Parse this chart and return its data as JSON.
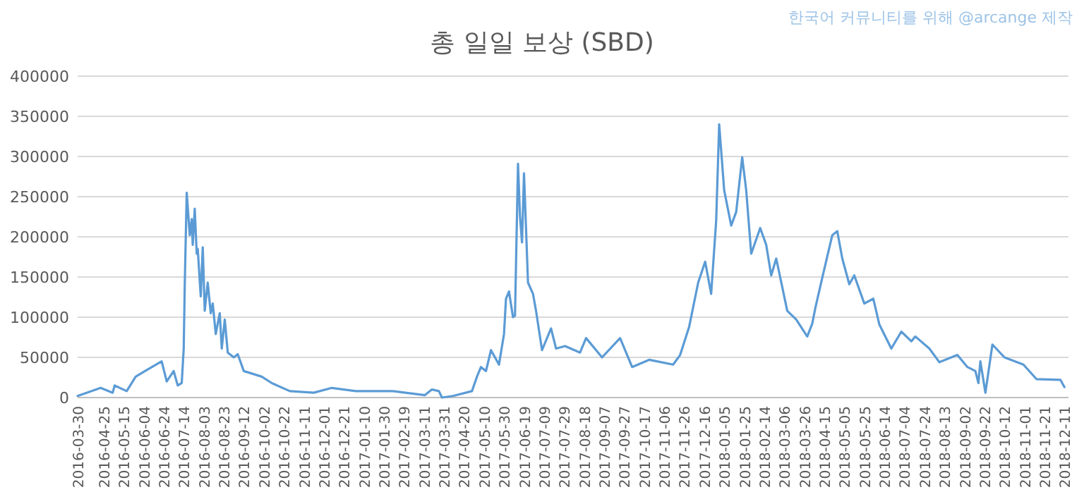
{
  "chart_data": {
    "type": "line",
    "title": "총 일일 보상 (SBD)",
    "annotations": [
      "한국어 커뮤니티를 위해 @arcange 제작"
    ],
    "x": [
      "2016-03-30",
      "2016-04-22",
      "2016-05-04",
      "2016-05-06",
      "2016-05-18",
      "2016-05-27",
      "2016-06-08",
      "2016-06-22",
      "2016-06-27",
      "2016-07-04",
      "2016-07-08",
      "2016-07-12",
      "2016-07-14",
      "2016-07-15",
      "2016-07-17",
      "2016-07-20",
      "2016-07-22",
      "2016-07-23",
      "2016-07-25",
      "2016-07-27",
      "2016-07-28",
      "2016-07-31",
      "2016-08-02",
      "2016-08-04",
      "2016-08-07",
      "2016-08-10",
      "2016-08-12",
      "2016-08-15",
      "2016-08-19",
      "2016-08-21",
      "2016-08-24",
      "2016-08-27",
      "2016-09-02",
      "2016-09-06",
      "2016-09-12",
      "2016-09-30",
      "2016-10-10",
      "2016-10-28",
      "2016-11-21",
      "2016-12-09",
      "2017-01-02",
      "2017-02-08",
      "2017-03-12",
      "2017-03-19",
      "2017-03-26",
      "2017-03-29",
      "2017-04-09",
      "2017-04-28",
      "2017-05-03",
      "2017-05-07",
      "2017-05-12",
      "2017-05-17",
      "2017-05-25",
      "2017-05-30",
      "2017-06-01",
      "2017-06-04",
      "2017-06-08",
      "2017-06-10",
      "2017-06-13",
      "2017-06-15",
      "2017-06-17",
      "2017-06-19",
      "2017-06-23",
      "2017-06-28",
      "2017-07-01",
      "2017-07-07",
      "2017-07-16",
      "2017-07-21",
      "2017-07-30",
      "2017-08-14",
      "2017-08-20",
      "2017-09-05",
      "2017-09-23",
      "2017-10-05",
      "2017-10-22",
      "2017-11-15",
      "2017-11-22",
      "2017-12-01",
      "2017-12-10",
      "2017-12-17",
      "2017-12-23",
      "2017-12-28",
      "2017-12-31",
      "2018-01-05",
      "2018-01-12",
      "2018-01-17",
      "2018-01-23",
      "2018-01-27",
      "2018-02-01",
      "2018-02-10",
      "2018-02-16",
      "2018-02-21",
      "2018-02-26",
      "2018-03-09",
      "2018-03-18",
      "2018-03-29",
      "2018-04-03",
      "2018-04-06",
      "2018-04-13",
      "2018-04-23",
      "2018-04-28",
      "2018-05-03",
      "2018-05-10",
      "2018-05-15",
      "2018-05-25",
      "2018-06-03",
      "2018-06-09",
      "2018-06-21",
      "2018-07-01",
      "2018-07-11",
      "2018-07-15",
      "2018-07-29",
      "2018-08-08",
      "2018-08-26",
      "2018-09-05",
      "2018-09-13",
      "2018-09-16",
      "2018-09-18",
      "2018-09-23",
      "2018-09-30",
      "2018-10-12",
      "2018-10-31",
      "2018-11-13",
      "2018-12-07",
      "2018-12-11"
    ],
    "series": [
      {
        "color": "#5b9bd5",
        "values": [
          2000,
          12000,
          6000,
          15000,
          8000,
          26000,
          35000,
          45000,
          20000,
          33000,
          15000,
          18000,
          61000,
          138000,
          255000,
          202000,
          222000,
          190000,
          235000,
          179000,
          185000,
          126000,
          187000,
          108000,
          143000,
          105000,
          117000,
          79000,
          105000,
          61000,
          97000,
          56000,
          50000,
          54000,
          33000,
          26000,
          18000,
          8000,
          6000,
          12000,
          8000,
          8000,
          3000,
          10000,
          8000,
          0,
          2000,
          8000,
          26000,
          38000,
          33000,
          59000,
          41000,
          79000,
          123000,
          132000,
          100000,
          102000,
          291000,
          225000,
          193000,
          279000,
          143000,
          129000,
          108000,
          59000,
          86000,
          61000,
          64000,
          56000,
          74000,
          50000,
          74000,
          38000,
          47000,
          41000,
          53000,
          88000,
          143000,
          169000,
          129000,
          220000,
          340000,
          258000,
          214000,
          231000,
          299000,
          258000,
          179000,
          211000,
          190000,
          152000,
          173000,
          108000,
          97000,
          76000,
          92000,
          111000,
          149000,
          202000,
          207000,
          173000,
          141000,
          152000,
          117000,
          123000,
          91000,
          61000,
          82000,
          70000,
          76000,
          61000,
          44000,
          53000,
          38000,
          33000,
          18000,
          45000,
          6000,
          66000,
          50000,
          41000,
          23000,
          22000,
          13000
        ]
      }
    ],
    "xlim": [
      "2016-03-30",
      "2018-12-15"
    ],
    "xticks": [
      "2016-03-30",
      "2016-04-25",
      "2016-05-15",
      "2016-06-04",
      "2016-06-24",
      "2016-07-14",
      "2016-08-03",
      "2016-08-23",
      "2016-09-12",
      "2016-10-02",
      "2016-10-22",
      "2016-11-11",
      "2016-12-01",
      "2016-12-21",
      "2017-01-10",
      "2017-01-30",
      "2017-02-19",
      "2017-03-11",
      "2017-03-31",
      "2017-04-20",
      "2017-05-10",
      "2017-05-30",
      "2017-06-19",
      "2017-07-09",
      "2017-07-29",
      "2017-08-18",
      "2017-09-07",
      "2017-09-27",
      "2017-10-17",
      "2017-11-06",
      "2017-11-26",
      "2017-12-16",
      "2018-01-05",
      "2018-01-25",
      "2018-02-14",
      "2018-03-06",
      "2018-03-26",
      "2018-04-15",
      "2018-05-05",
      "2018-05-25",
      "2018-06-14",
      "2018-07-04",
      "2018-07-24",
      "2018-08-13",
      "2018-09-02",
      "2018-09-22",
      "2018-10-12",
      "2018-11-01",
      "2018-11-21",
      "2018-12-11"
    ],
    "ylim": [
      0,
      400000
    ],
    "yticks": [
      0,
      50000,
      100000,
      150000,
      200000,
      250000,
      300000,
      350000,
      400000
    ],
    "grid": "y"
  }
}
